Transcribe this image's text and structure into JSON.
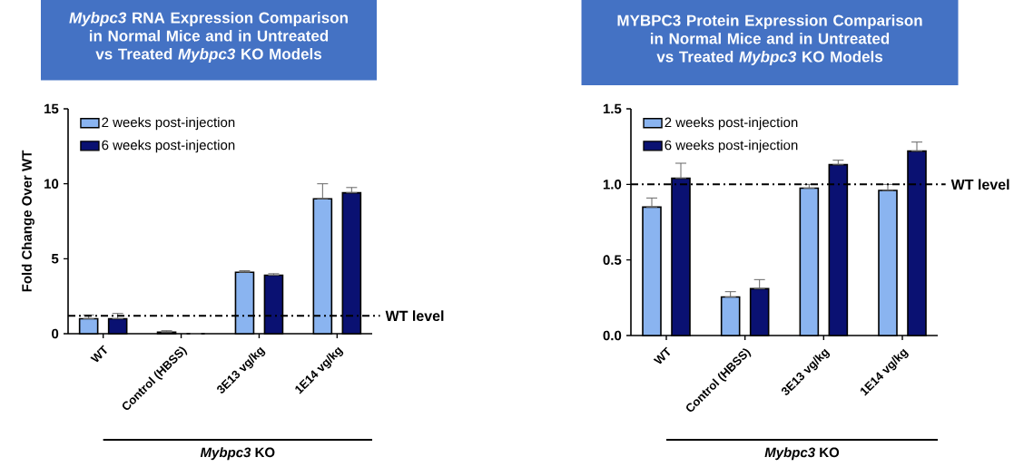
{
  "chart_data": [
    {
      "type": "bar",
      "title": "*Mybpc3* RNA Expression Comparison in Normal Mice and in Untreated vs Treated *Mybpc3* KO Models",
      "ylabel": "Fold Change Over WT",
      "categories": [
        "WT",
        "Control (HBSS)",
        "3E13 vg/kg",
        "1E14 vg/kg"
      ],
      "series": [
        {
          "name": "2 weeks post-injection",
          "color": "#8ab4f0",
          "values": [
            1.0,
            0.1,
            4.1,
            9.0
          ],
          "errors": [
            [
              1.0,
              1.25
            ],
            [
              0.1,
              0.2
            ],
            [
              4.1,
              4.2
            ],
            [
              9.0,
              10.0
            ]
          ]
        },
        {
          "name": "6 weeks post-injection",
          "color": "#0a1172",
          "values": [
            1.0,
            0,
            3.9,
            9.4
          ],
          "errors": [
            [
              1.0,
              1.35
            ],
            null,
            [
              3.9,
              4.0
            ],
            [
              9.4,
              9.75
            ]
          ]
        }
      ],
      "ylim": [
        0,
        15
      ],
      "yticks": [
        0,
        5,
        10,
        15
      ],
      "legend": "top left",
      "ref_lines": [
        {
          "axis": "y",
          "value": 1.2,
          "label": "WT level"
        }
      ],
      "annotations": [
        "*Mybpc3* KO"
      ]
    },
    {
      "type": "bar",
      "title": "MYBPC3 Protein Expression Comparison in Normal Mice and in Untreated vs Treated *Mybpc3* KO Models",
      "categories": [
        "WT",
        "Control (HBSS)",
        "3E13 vg/kg",
        "1E14 vg/kg"
      ],
      "series": [
        {
          "name": "2 weeks post-injection",
          "color": "#8ab4f0",
          "values": [
            0.85,
            0.255,
            0.975,
            0.96
          ],
          "errors": [
            [
              0.85,
              0.91
            ],
            [
              0.255,
              0.29
            ],
            [
              0.975,
              1.0
            ],
            [
              0.96,
              1.0
            ]
          ]
        },
        {
          "name": "6 weeks post-injection",
          "color": "#0a1172",
          "values": [
            1.04,
            0.31,
            1.13,
            1.22
          ],
          "errors": [
            [
              1.04,
              1.14
            ],
            [
              0.31,
              0.37
            ],
            [
              1.13,
              1.16
            ],
            [
              1.22,
              1.28
            ]
          ]
        }
      ],
      "ylim": [
        0,
        1.5
      ],
      "yticks": [
        {
          "value": 0,
          "label": "0.0"
        },
        0.5,
        {
          "value": 1,
          "label": "1.0"
        },
        1.5
      ],
      "legend": "top left",
      "ref_lines": [
        {
          "axis": "y",
          "value": 1,
          "label": "WT level"
        }
      ],
      "annotations": [
        "*Mybpc3* KO"
      ]
    }
  ]
}
